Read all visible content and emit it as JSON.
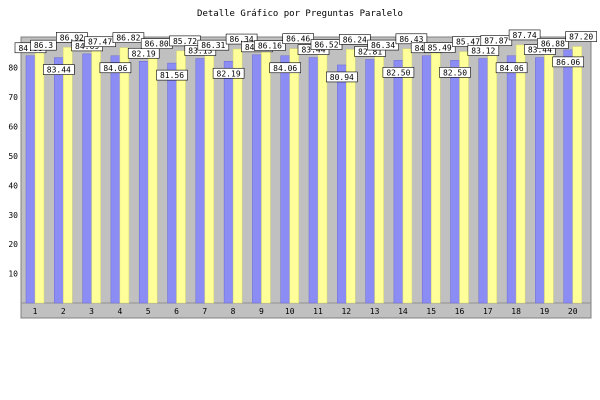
{
  "chart_data": {
    "type": "bar",
    "title": "Detalle Gráfico por Preguntas Paralelo",
    "xlabel": "",
    "ylabel": "",
    "ylim": [
      0,
      90
    ],
    "yticks": [
      10,
      20,
      30,
      40,
      50,
      60,
      70,
      80
    ],
    "grid": false,
    "categories": [
      "1",
      "2",
      "3",
      "4",
      "5",
      "6",
      "7",
      "8",
      "9",
      "10",
      "11",
      "12",
      "13",
      "14",
      "15",
      "16",
      "17",
      "18",
      "19",
      "20"
    ],
    "series": [
      {
        "color": "#8c8cf5",
        "values": [
          84.06,
          83.44,
          84.69,
          84.06,
          82.19,
          81.56,
          83.13,
          82.19,
          84.38,
          84.06,
          83.44,
          80.94,
          82.81,
          82.5,
          84.06,
          82.5,
          83.12,
          84.06,
          83.44,
          86.06
        ]
      },
      {
        "color": "#ffff99",
        "values": [
          86.3,
          86.92,
          87.47,
          86.82,
          86.8,
          85.72,
          86.31,
          86.34,
          86.16,
          86.46,
          86.52,
          86.24,
          86.34,
          86.43,
          85.49,
          85.47,
          87.87,
          87.74,
          86.88,
          87.2
        ]
      }
    ],
    "data_labels": [
      [
        "84.06",
        "86.3"
      ],
      [
        "83.44",
        "86.92"
      ],
      [
        "84.69",
        "87.47"
      ],
      [
        "84.06",
        "86.82"
      ],
      [
        "82.19",
        "86.80"
      ],
      [
        "81.56",
        "85.72"
      ],
      [
        "83.13",
        "86.31"
      ],
      [
        "82.19",
        "86.34"
      ],
      [
        "84.38",
        "86.16"
      ],
      [
        "84.06",
        "86.46"
      ],
      [
        "83.44",
        "86.52"
      ],
      [
        "80.94",
        "86.24"
      ],
      [
        "82.81",
        "86.34"
      ],
      [
        "82.50",
        "86.43"
      ],
      [
        "84.06",
        "85.49"
      ],
      [
        "82.50",
        "85.47"
      ],
      [
        "83.12",
        "87.87"
      ],
      [
        "84.06",
        "87.74"
      ],
      [
        "83.44",
        "86.88"
      ],
      [
        "86.06",
        "87.20"
      ]
    ],
    "colors": {
      "plot_background": "#c0c0c0",
      "plot_border": "#808080",
      "label_background": "#ffffff"
    }
  }
}
